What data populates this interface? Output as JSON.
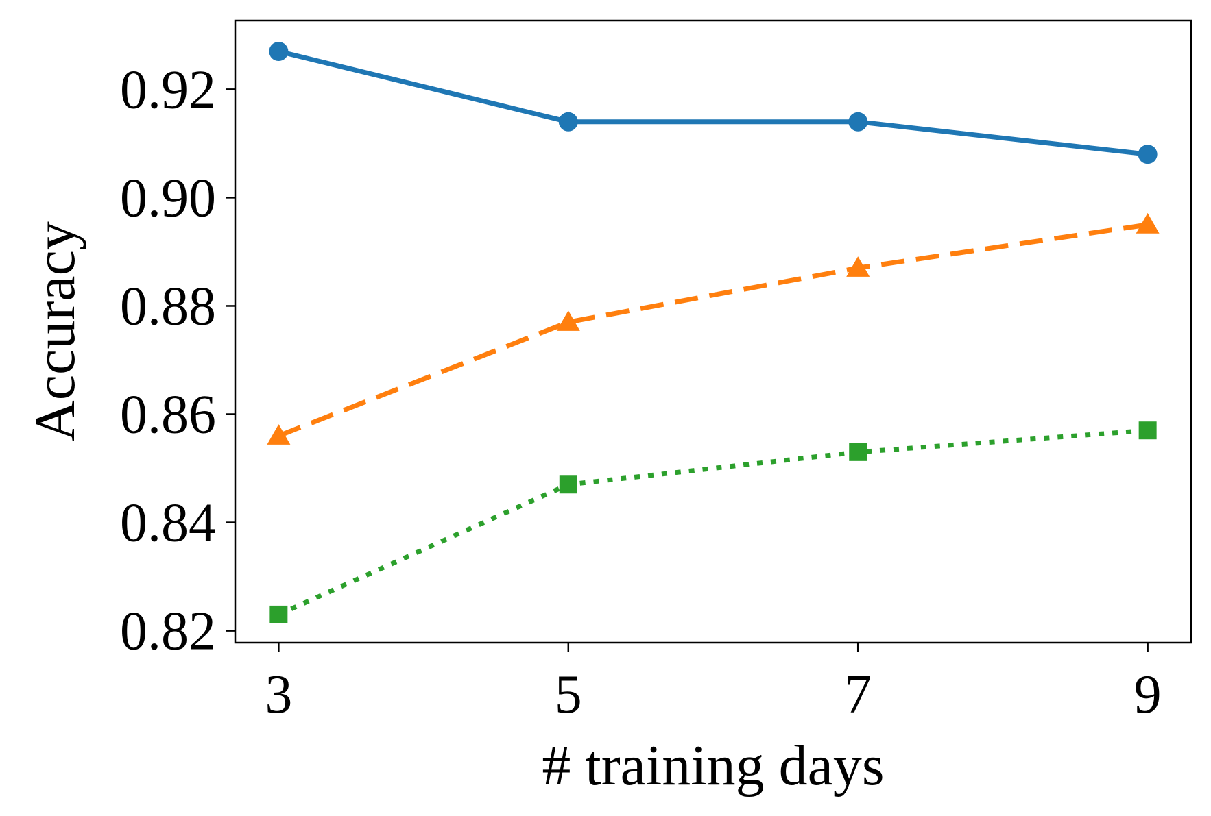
{
  "chart_data": {
    "type": "line",
    "title": "",
    "xlabel": "# training days",
    "ylabel": "Accuracy",
    "x": [
      3,
      5,
      7,
      9
    ],
    "xticks": [
      "3",
      "5",
      "7",
      "9"
    ],
    "yticks": [
      "0.82",
      "0.84",
      "0.86",
      "0.88",
      "0.90",
      "0.92"
    ],
    "xlim": [
      2.7,
      9.3
    ],
    "ylim": [
      0.8178,
      0.9327
    ],
    "grid": false,
    "legend": "none",
    "series": [
      {
        "values": [
          0.927,
          0.914,
          0.914,
          0.908
        ],
        "color": "#1f77b4",
        "line_style": "solid",
        "marker": "circle"
      },
      {
        "values": [
          0.856,
          0.877,
          0.887,
          0.895
        ],
        "color": "#ff7f0e",
        "line_style": "dashed",
        "marker": "triangle"
      },
      {
        "values": [
          0.823,
          0.847,
          0.853,
          0.857
        ],
        "color": "#2ca02c",
        "line_style": "dotted",
        "marker": "square"
      }
    ]
  }
}
